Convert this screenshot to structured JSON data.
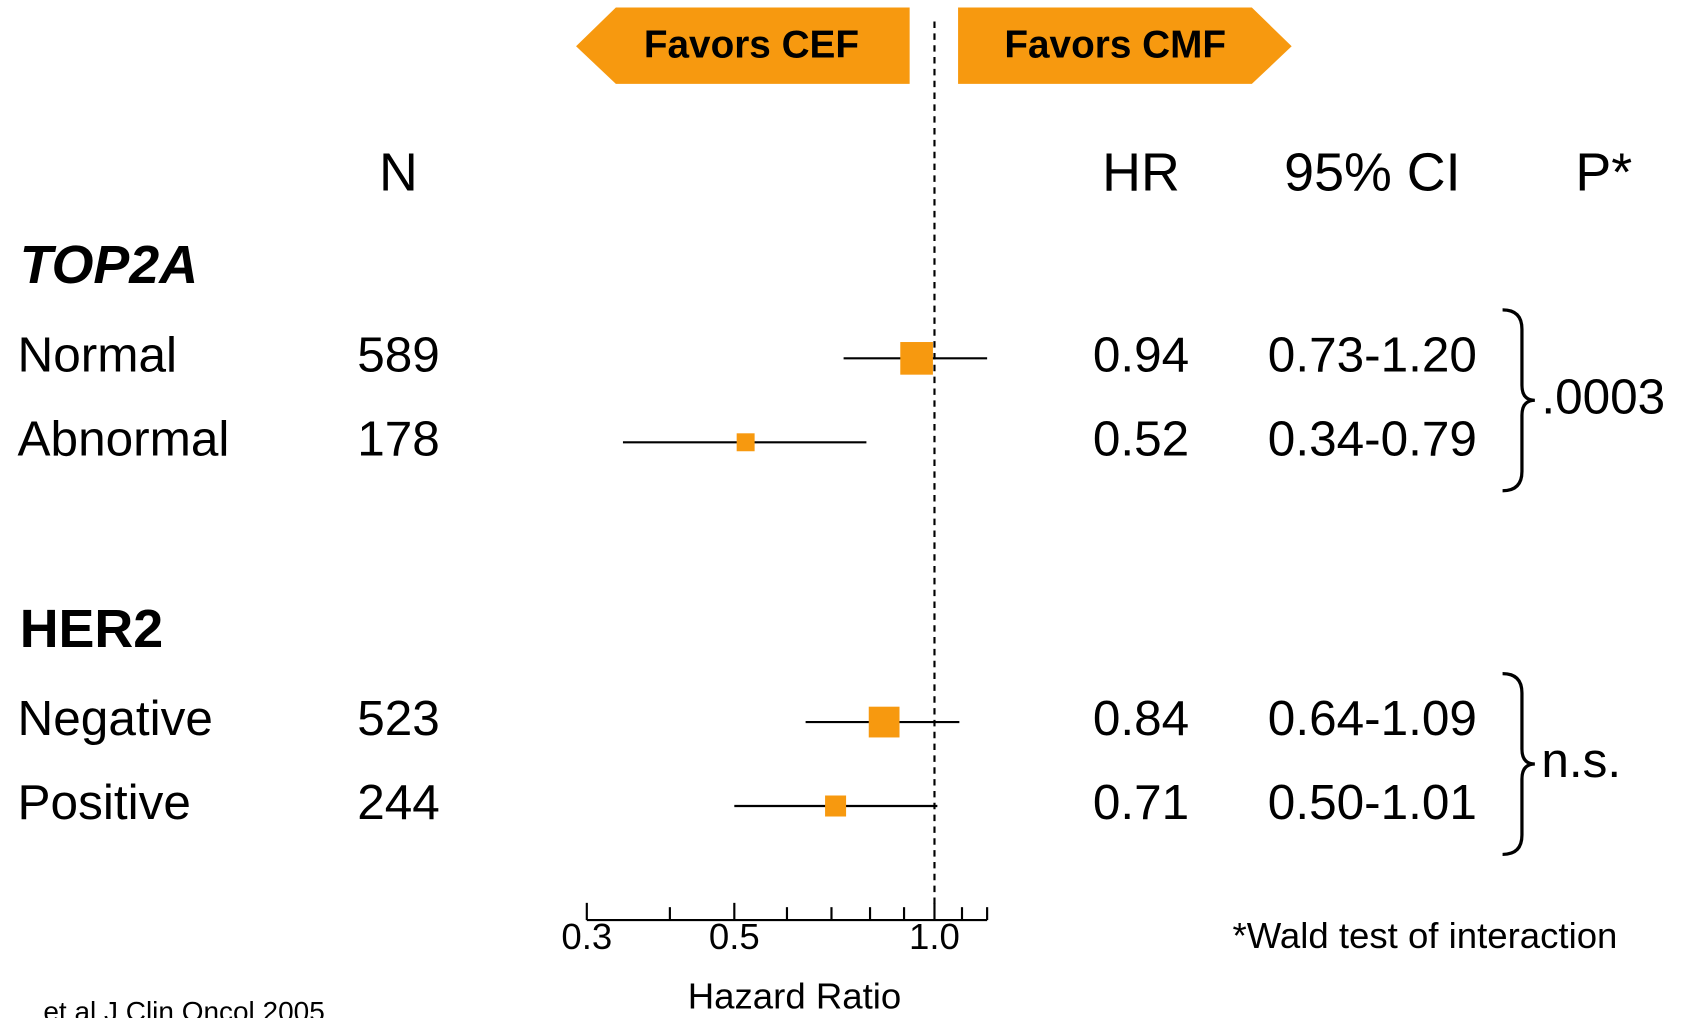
{
  "chart_data": {
    "type": "forest",
    "favors_left": "Favors CEF",
    "favors_right": "Favors CMF",
    "columns": {
      "n": "N",
      "hr": "HR",
      "ci": "95% CI",
      "p": "P*"
    },
    "groups": [
      {
        "name": "TOP2A",
        "italic": true,
        "p_label": ".0003",
        "rows": [
          {
            "label": "Normal",
            "n": 589,
            "hr": 0.94,
            "ci_low": 0.73,
            "ci_high": 1.2,
            "ci_label": "0.73-1.20"
          },
          {
            "label": "Abnormal",
            "n": 178,
            "hr": 0.52,
            "ci_low": 0.34,
            "ci_high": 0.79,
            "ci_label": "0.34-0.79"
          }
        ]
      },
      {
        "name": "HER2",
        "italic": false,
        "p_label": "n.s.",
        "rows": [
          {
            "label": "Negative",
            "n": 523,
            "hr": 0.84,
            "ci_low": 0.64,
            "ci_high": 1.09,
            "ci_label": "0.64-1.09"
          },
          {
            "label": "Positive",
            "n": 244,
            "hr": 0.71,
            "ci_low": 0.5,
            "ci_high": 1.01,
            "ci_label": "0.50-1.01"
          }
        ]
      }
    ],
    "xlabel": "Hazard Ratio",
    "xscale": "log",
    "xlim": [
      0.3,
      1.2
    ],
    "xticks": [
      0.3,
      0.5,
      {
        "value": 1,
        "label": "1.0"
      }
    ],
    "minor_xticks": [
      0.4,
      0.6,
      0.7,
      0.8,
      0.9,
      1.1,
      1.2
    ],
    "reference_line": 1,
    "color": "#f7990f",
    "footnote": "*Wald test of interaction",
    "source": "et al J Clin Oncol 2005"
  }
}
